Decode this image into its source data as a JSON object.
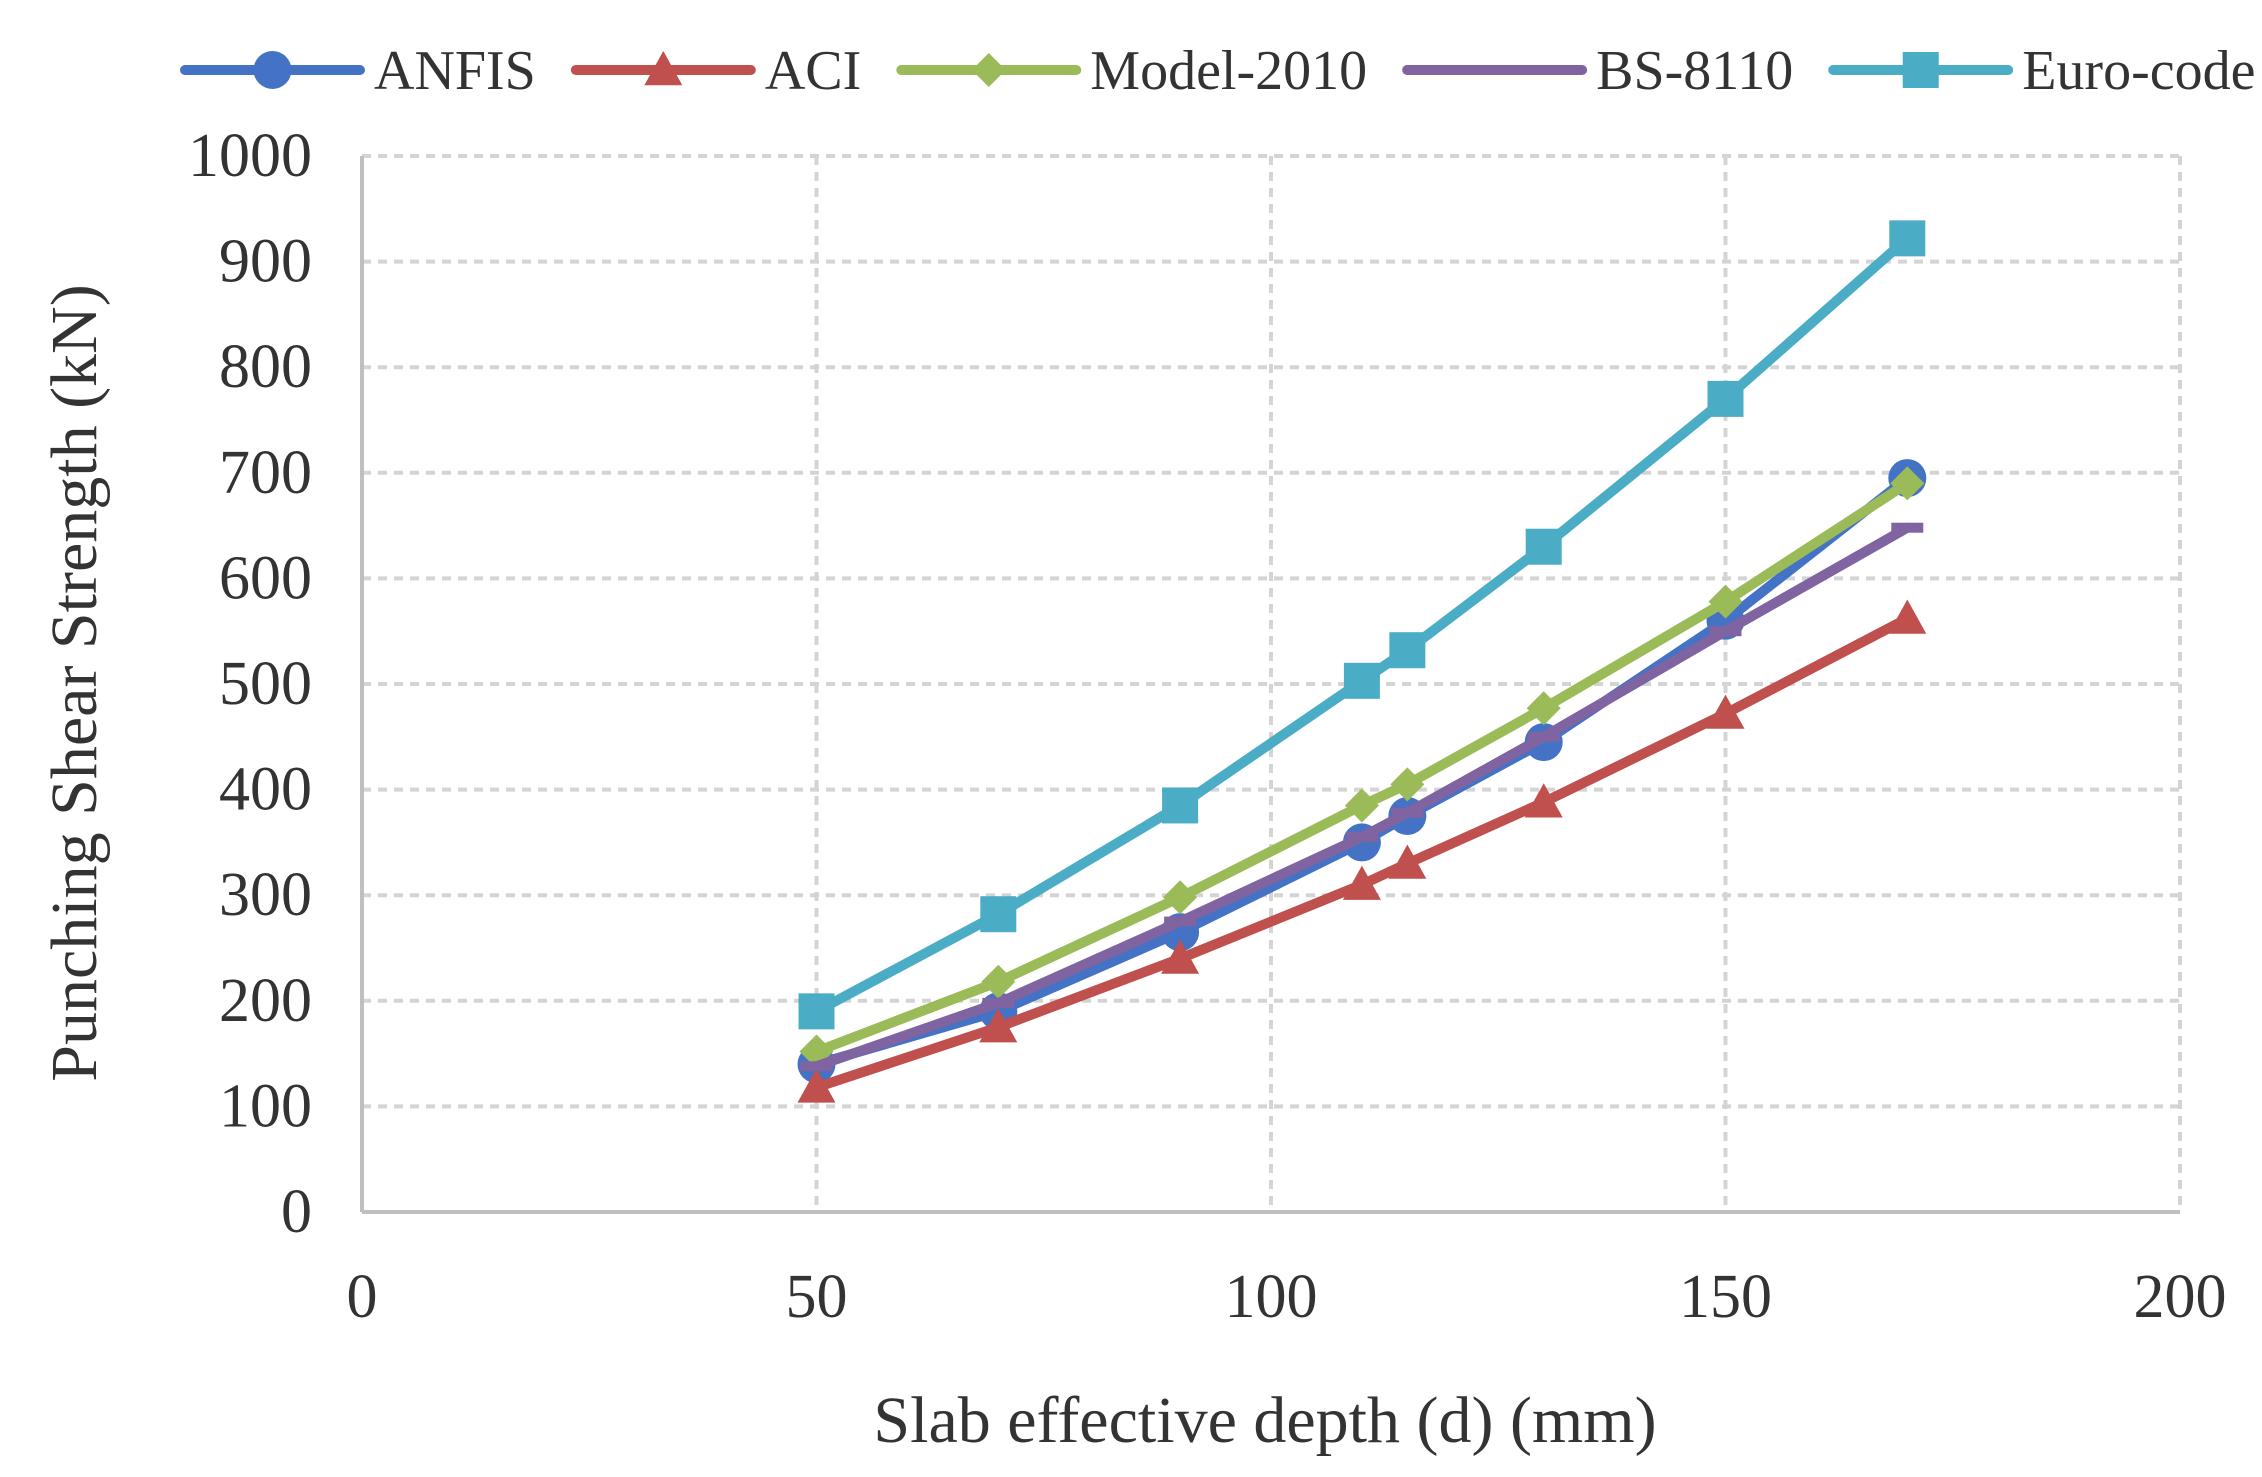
{
  "chart_data": {
    "type": "line",
    "title": "",
    "xlabel": "Slab effective depth (d) (mm)",
    "ylabel": "Punching Shear Strength (kN)",
    "xlim": [
      0,
      200
    ],
    "ylim": [
      0,
      1000
    ],
    "xticks": [
      0,
      50,
      100,
      150,
      200
    ],
    "yticks": [
      0,
      100,
      200,
      300,
      400,
      500,
      600,
      700,
      800,
      900,
      1000
    ],
    "grid": true,
    "legend_position": "top",
    "x": [
      50,
      70,
      90,
      110,
      115,
      130,
      150,
      170
    ],
    "series": [
      {
        "name": "ANFIS",
        "color": "#4472c4",
        "marker": "circle",
        "values": [
          140,
          190,
          265,
          350,
          375,
          445,
          560,
          695
        ]
      },
      {
        "name": "ACI",
        "color": "#c0504d",
        "marker": "triangle",
        "values": [
          118,
          175,
          240,
          310,
          330,
          388,
          472,
          562
        ]
      },
      {
        "name": "Model-2010",
        "color": "#9bbb59",
        "marker": "diamond",
        "values": [
          152,
          218,
          298,
          385,
          405,
          477,
          578,
          690
        ]
      },
      {
        "name": "BS-8110",
        "color": "#8064a2",
        "marker": "dash",
        "values": [
          138,
          198,
          275,
          355,
          378,
          450,
          550,
          648
        ]
      },
      {
        "name": "Euro-code",
        "color": "#4bacc6",
        "marker": "square",
        "values": [
          190,
          282,
          385,
          503,
          532,
          630,
          770,
          922
        ]
      }
    ]
  }
}
